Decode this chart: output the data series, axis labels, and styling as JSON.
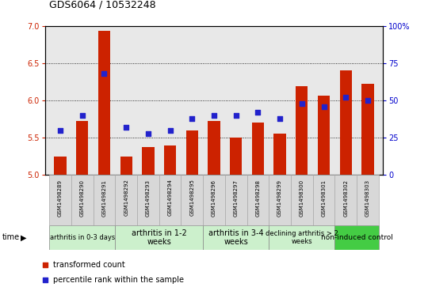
{
  "title": "GDS6064 / 10532248",
  "samples": [
    "GSM1498289",
    "GSM1498290",
    "GSM1498291",
    "GSM1498292",
    "GSM1498293",
    "GSM1498294",
    "GSM1498295",
    "GSM1498296",
    "GSM1498297",
    "GSM1498298",
    "GSM1498299",
    "GSM1498300",
    "GSM1498301",
    "GSM1498302",
    "GSM1498303"
  ],
  "transformed_count": [
    5.25,
    5.72,
    6.93,
    5.25,
    5.38,
    5.4,
    5.6,
    5.72,
    5.5,
    5.7,
    5.56,
    6.19,
    6.06,
    6.4,
    6.22
  ],
  "percentile_rank": [
    30,
    40,
    68,
    32,
    28,
    30,
    38,
    40,
    40,
    42,
    38,
    48,
    46,
    52,
    50
  ],
  "ylim_left": [
    5.0,
    7.0
  ],
  "ylim_right": [
    0,
    100
  ],
  "yticks_left": [
    5.0,
    5.5,
    6.0,
    6.5,
    7.0
  ],
  "yticks_right": [
    0,
    25,
    50,
    75,
    100
  ],
  "ytick_labels_right": [
    "0",
    "25",
    "50",
    "75",
    "100%"
  ],
  "groups": [
    {
      "label": "arthritis in 0-3 days",
      "indices": [
        0,
        1,
        2
      ],
      "color": "#ccf0cc",
      "fontsize": 6.0
    },
    {
      "label": "arthritis in 1-2\nweeks",
      "indices": [
        3,
        4,
        5,
        6
      ],
      "color": "#ccf0cc",
      "fontsize": 7.0
    },
    {
      "label": "arthritis in 3-4\nweeks",
      "indices": [
        7,
        8,
        9
      ],
      "color": "#ccf0cc",
      "fontsize": 7.0
    },
    {
      "label": "declining arthritis > 2\nweeks",
      "indices": [
        10,
        11,
        12
      ],
      "color": "#ccf0cc",
      "fontsize": 6.0
    },
    {
      "label": "non-induced control",
      "indices": [
        13,
        14
      ],
      "color": "#44cc44",
      "fontsize": 6.5
    }
  ],
  "bar_color": "#cc2200",
  "dot_color": "#2222cc",
  "bar_width": 0.55,
  "bg_color": "#e8e8e8",
  "legend_red": "transformed count",
  "legend_blue": "percentile rank within the sample"
}
